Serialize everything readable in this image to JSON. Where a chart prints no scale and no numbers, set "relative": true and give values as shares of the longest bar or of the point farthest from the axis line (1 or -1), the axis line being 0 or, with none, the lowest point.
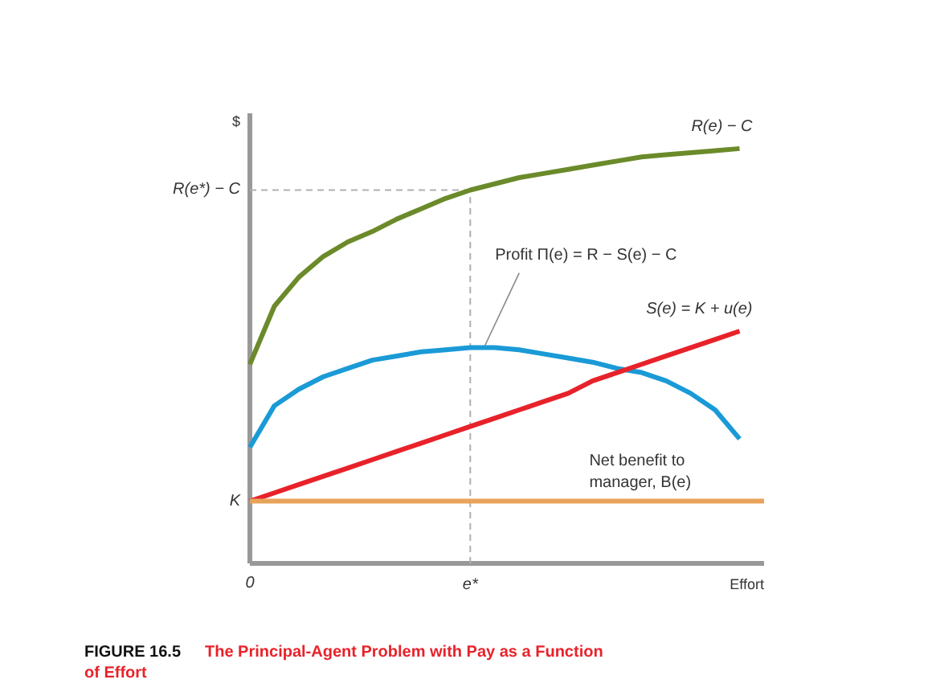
{
  "chart_data": {
    "type": "line",
    "relative": true,
    "title": "FIGURE 16.5 The Principal-Agent Problem with Pay as a Function of Effort",
    "xlabel": "Effort",
    "ylabel": "$",
    "categories": [
      "0",
      null,
      null,
      null,
      null,
      null,
      null,
      null,
      null,
      "e*",
      null,
      null,
      null,
      null,
      null,
      null,
      null,
      null,
      null,
      null,
      null,
      null
    ],
    "marker": "none",
    "series": [
      {
        "name": "R(e) − C",
        "color": "#6b8a2a",
        "values": [
          0.48,
          0.62,
          0.69,
          0.74,
          0.775,
          0.8,
          0.83,
          0.855,
          0.88,
          0.9,
          0.915,
          0.93,
          0.94,
          0.95,
          0.96,
          0.97,
          0.98,
          0.985,
          0.99,
          0.995,
          1.0,
          null
        ]
      },
      {
        "name": "Profit Π(e) = R − S(e) − C",
        "color": "#1a9ad6",
        "values": [
          0.28,
          0.38,
          0.42,
          0.45,
          0.47,
          0.49,
          0.5,
          0.51,
          0.515,
          0.52,
          0.52,
          0.515,
          0.505,
          0.495,
          0.485,
          0.47,
          0.46,
          0.44,
          0.41,
          0.37,
          0.3,
          null
        ]
      },
      {
        "name": "S(e) = K + u(e)",
        "color": "#e8222a",
        "values": [
          0.15,
          0.17,
          0.19,
          0.21,
          0.23,
          0.25,
          0.27,
          0.29,
          0.31,
          0.33,
          0.35,
          0.37,
          0.39,
          0.41,
          0.44,
          0.46,
          0.48,
          0.5,
          0.52,
          0.54,
          0.56,
          null
        ]
      },
      {
        "name": "Net benefit to\nmanager, B(e)",
        "color": "#e8a35a",
        "values": [
          0.15,
          0.15,
          0.15,
          0.15,
          0.15,
          0.15,
          0.15,
          0.15,
          0.15,
          0.15,
          0.15,
          0.15,
          0.15,
          0.15,
          0.15,
          0.15,
          0.15,
          0.15,
          0.15,
          0.15,
          0.15,
          0.15
        ]
      }
    ],
    "ref_lines": [
      {
        "axis": "y",
        "value": 0.9,
        "color": "#b0b0b0",
        "line_style": "dashed"
      },
      {
        "axis": "x",
        "value": "e*",
        "color": "#b0b0b0",
        "line_style": "dashed"
      }
    ],
    "annotations": [
      {
        "text": "K",
        "x": "0",
        "y": 0.15
      },
      {
        "text": "R(e*) − C",
        "x": "0",
        "y": 0.9
      }
    ]
  }
}
